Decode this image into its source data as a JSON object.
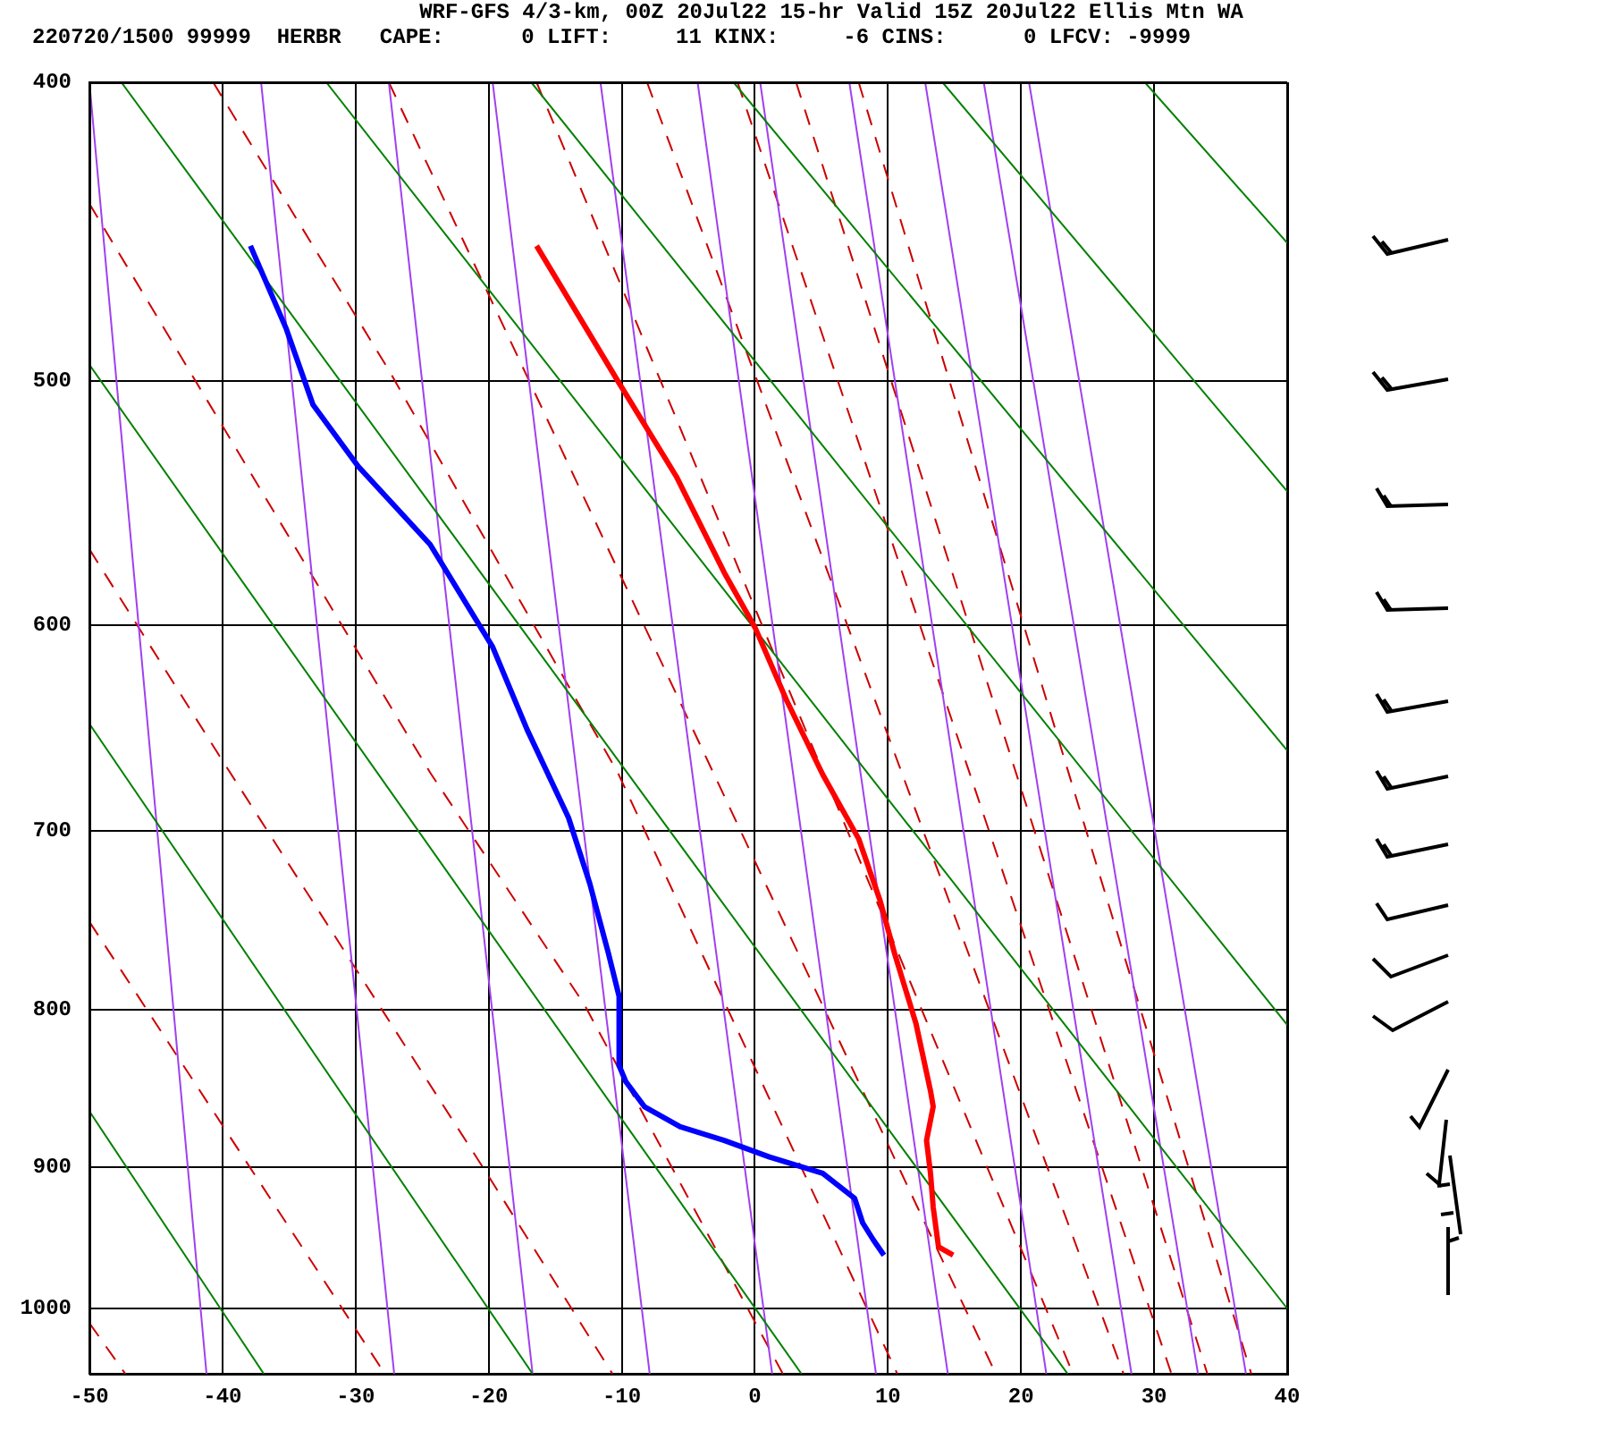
{
  "chart_data": {
    "type": "line",
    "title": "WRF-GFS 4/3-km, 00Z 20Jul22 15-hr Valid 15Z 20Jul22 Ellis Mtn WA",
    "subtitle": "220720/1500 99999  HERBR   CAPE:      0 LIFT:     11 KINX:     -6 CINS:      0 LFCV: -9999",
    "xlim": [
      -50,
      40
    ],
    "xticks": [
      -50,
      -40,
      -30,
      -20,
      -10,
      0,
      10,
      20,
      30,
      40
    ],
    "ylim": [
      1050,
      400
    ],
    "yticks": [
      400,
      500,
      600,
      700,
      800,
      900,
      1000
    ],
    "grid": true,
    "log": true,
    "legend": false,
    "marker": "none",
    "series": [
      {
        "color": "#ff0000",
        "x": [
          -16.4,
          -10.3,
          -5.9,
          -2.3,
          0,
          2.4,
          5.1,
          7.8,
          9.4,
          10.5,
          12.1,
          13.2,
          13.4,
          12.9,
          13.2,
          13.4,
          13.8,
          14.9
        ],
        "values": [
          452,
          500,
          537,
          577,
          601,
          635,
          671,
          704,
          737,
          767,
          808,
          850,
          860,
          882,
          904,
          927,
          955,
          961
        ]
      },
      {
        "color": "#0000ff",
        "x": [
          -37.9,
          -35.2,
          -33.2,
          -29.8,
          -24.4,
          -19.7,
          -17.1,
          -14.0,
          -12.4,
          -11.0,
          -10.2,
          -10.2,
          -9.7,
          -8.3,
          -5.6,
          -2.3,
          1.1,
          5.1,
          7.5,
          8.1,
          8.9,
          9.7
        ],
        "values": [
          452,
          481,
          509,
          533,
          565,
          610,
          649,
          693,
          728,
          767,
          792,
          834,
          844,
          860,
          873,
          882,
          893,
          904,
          921,
          938,
          950,
          961
        ]
      },
      {
        "color": "#008000",
        "x": [
          -50,
          -36.9
        ],
        "values": [
          863,
          1050
        ]
      },
      {
        "color": "#008000",
        "x": [
          -50,
          -16.7
        ],
        "values": [
          646,
          1050
        ]
      },
      {
        "color": "#008000",
        "x": [
          -50,
          3.5
        ],
        "values": [
          494,
          1050
        ]
      },
      {
        "color": "#008000",
        "x": [
          -47.6,
          23.5
        ],
        "values": [
          400,
          1050
        ]
      },
      {
        "color": "#008000",
        "x": [
          -32.2,
          40
        ],
        "values": [
          400,
          1000
        ]
      },
      {
        "color": "#008000",
        "x": [
          -16.8,
          40
        ],
        "values": [
          400,
          809
        ]
      },
      {
        "color": "#008000",
        "x": [
          -1.6,
          40
        ],
        "values": [
          400,
          659
        ]
      },
      {
        "color": "#008000",
        "x": [
          14.1,
          40
        ],
        "values": [
          400,
          543
        ]
      },
      {
        "color": "#008000",
        "x": [
          29.3,
          40
        ],
        "values": [
          400,
          451
        ]
      },
      {
        "color": "#a040f0",
        "x": [
          -50,
          -41.2
        ],
        "values": [
          400,
          1050
        ]
      },
      {
        "color": "#a040f0",
        "x": [
          -37.1,
          -27.1
        ],
        "values": [
          400,
          1050
        ]
      },
      {
        "color": "#a040f0",
        "x": [
          -27.5,
          -16.7
        ],
        "values": [
          400,
          1050
        ]
      },
      {
        "color": "#a040f0",
        "x": [
          -19.7,
          -7.9
        ],
        "values": [
          400,
          1050
        ]
      },
      {
        "color": "#a040f0",
        "x": [
          -11.6,
          1.3
        ],
        "values": [
          400,
          1050
        ]
      },
      {
        "color": "#a040f0",
        "x": [
          -4.3,
          9.1
        ],
        "values": [
          400,
          1050
        ]
      },
      {
        "color": "#a040f0",
        "x": [
          0.4,
          14.5
        ],
        "values": [
          400,
          1050
        ]
      },
      {
        "color": "#a040f0",
        "x": [
          7.1,
          21.9
        ],
        "values": [
          400,
          1050
        ]
      },
      {
        "color": "#a040f0",
        "x": [
          12.8,
          28.3
        ],
        "values": [
          400,
          1050
        ]
      },
      {
        "color": "#a040f0",
        "x": [
          17.2,
          33.3
        ],
        "values": [
          400,
          1050
        ]
      },
      {
        "color": "#a040f0",
        "x": [
          20.6,
          36.9
        ],
        "values": [
          400,
          1050
        ]
      },
      {
        "color": "#cc0000",
        "line_style": "dashed",
        "x": [
          -50,
          -47.3
        ],
        "values": [
          1011,
          1050
        ]
      },
      {
        "color": "#cc0000",
        "line_style": "dashed",
        "x": [
          -50,
          -27.8
        ],
        "values": [
          749,
          1050
        ]
      },
      {
        "color": "#cc0000",
        "line_style": "dashed",
        "x": [
          -50,
          -40.2,
          -20,
          -10.7
        ],
        "values": [
          567,
          662,
          906,
          1050
        ]
      },
      {
        "color": "#cc0000",
        "line_style": "dashed",
        "x": [
          -50,
          -24.4,
          -12.8,
          2.1
        ],
        "values": [
          438,
          670,
          797,
          1050
        ]
      },
      {
        "color": "#cc0000",
        "line_style": "dashed",
        "x": [
          -40.7,
          -27.5,
          -10.3,
          10.7
        ],
        "values": [
          400,
          496,
          670,
          1050
        ]
      },
      {
        "color": "#cc0000",
        "line_style": "dashed",
        "x": [
          -27.5,
          18.1
        ],
        "values": [
          400,
          1050
        ]
      },
      {
        "color": "#cc0000",
        "line_style": "dashed",
        "x": [
          -16.4,
          23.9
        ],
        "values": [
          400,
          1050
        ]
      },
      {
        "color": "#cc0000",
        "line_style": "dashed",
        "x": [
          -8.1,
          27.7
        ],
        "values": [
          400,
          1050
        ]
      },
      {
        "color": "#cc0000",
        "line_style": "dashed",
        "x": [
          -1.3,
          31.3
        ],
        "values": [
          400,
          1050
        ]
      },
      {
        "color": "#cc0000",
        "line_style": "dashed",
        "x": [
          3.1,
          34.0
        ],
        "values": [
          400,
          1050
        ]
      },
      {
        "color": "#cc0000",
        "line_style": "dashed",
        "x": [
          7.8,
          37.3
        ],
        "values": [
          400,
          1050
        ]
      }
    ]
  }
}
